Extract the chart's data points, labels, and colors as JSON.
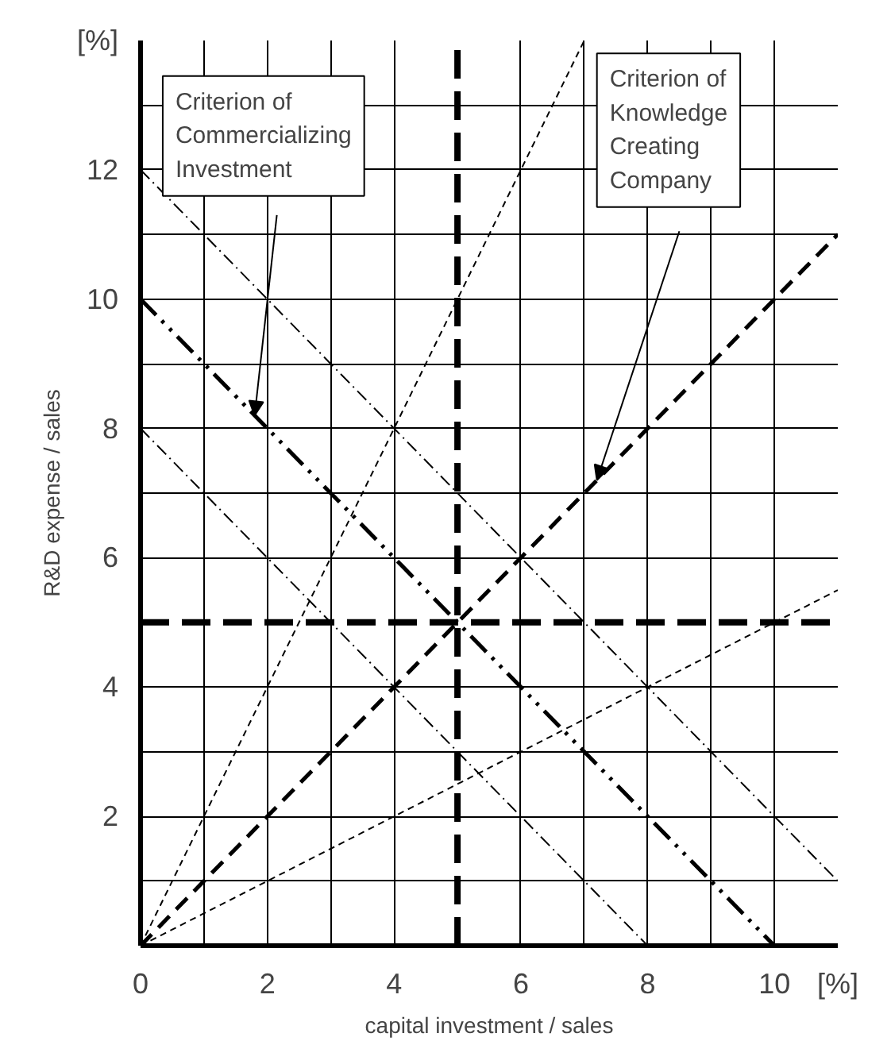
{
  "chart_data": {
    "type": "line",
    "xlabel": "capital investment / sales",
    "ylabel": "R&D expense / sales",
    "xlim": [
      0,
      11
    ],
    "ylim": [
      0,
      14
    ],
    "xticks": [
      0,
      {
        "value": 1,
        "label": null
      },
      2,
      {
        "value": 3,
        "label": null
      },
      4,
      {
        "value": 5,
        "label": null
      },
      6,
      {
        "value": 7,
        "label": null
      },
      8,
      {
        "value": 9,
        "label": null
      },
      10,
      {
        "value": 11,
        "label": "[%]"
      }
    ],
    "yticks": [
      {
        "value": 0,
        "label": null
      },
      {
        "value": 1,
        "label": null
      },
      2,
      {
        "value": 3,
        "label": null
      },
      4,
      {
        "value": 5,
        "label": null
      },
      6,
      {
        "value": 7,
        "label": null
      },
      8,
      {
        "value": 9,
        "label": null
      },
      10,
      {
        "value": 11,
        "label": null
      },
      12,
      {
        "value": 13,
        "label": null
      },
      {
        "value": 14,
        "label": "[%]"
      }
    ],
    "grid": true,
    "marker": "none",
    "series": [
      {
        "color": "#000000",
        "x": [
          0,
          7
        ],
        "values": [
          0,
          14
        ],
        "line_style": "dashed"
      },
      {
        "color": "#000000",
        "x": [
          0,
          11
        ],
        "values": [
          0,
          11
        ],
        "line_style": "dashed"
      },
      {
        "color": "#000000",
        "x": [
          0,
          11
        ],
        "values": [
          0,
          5.5
        ],
        "line_style": "dashed"
      },
      {
        "color": "#000000",
        "x": [
          0,
          10
        ],
        "values": [
          10,
          0
        ],
        "line_style": "dashdot"
      },
      {
        "color": "#000000",
        "x": [
          0,
          8
        ],
        "values": [
          8,
          0
        ],
        "line_style": "dashdot"
      },
      {
        "color": "#000000",
        "x": [
          0,
          11
        ],
        "values": [
          12,
          1
        ],
        "line_style": "dashdot"
      },
      {
        "color": "#000000",
        "x": [
          5,
          5
        ],
        "values": [
          0,
          14
        ],
        "line_style": "dashed"
      },
      {
        "color": "#000000",
        "x": [
          0,
          11
        ],
        "values": [
          5,
          5
        ],
        "line_style": "dashed"
      }
    ],
    "annotations": [
      "Criterion of\nCommercializing\nInvestment",
      "Criterion of\nKnowledge\nCreating\nCompany"
    ]
  }
}
